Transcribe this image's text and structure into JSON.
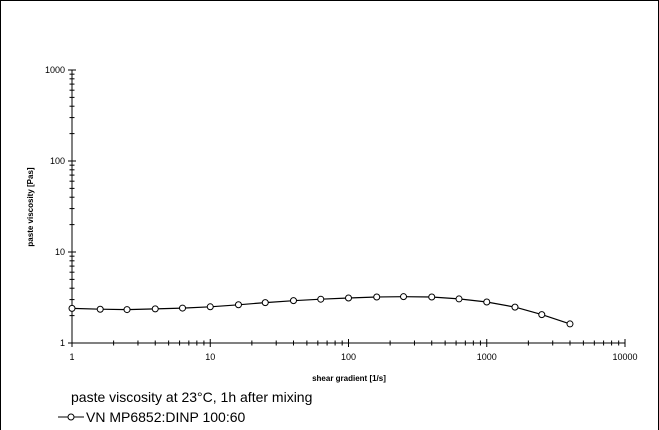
{
  "chart_data": {
    "type": "line",
    "title": "",
    "xlabel": "shear gradient  [1/s]",
    "ylabel": "paste viscosity   [Pas]",
    "x_scale": "log",
    "y_scale": "log",
    "xlim": [
      1,
      10000
    ],
    "ylim": [
      1,
      1000
    ],
    "x_ticks": [
      "1",
      "10",
      "100",
      "1000",
      "10000"
    ],
    "y_ticks": [
      "1",
      "10",
      "100",
      "1000"
    ],
    "grid": false,
    "annotation": "paste viscosity at 23°C, 1h after mixing",
    "legend_placement": "bottom-left",
    "series": [
      {
        "name": "VN  MP6852:DINP  100:60",
        "color": "#000000",
        "marker": "open-circle",
        "x": [
          1,
          1.6,
          2.5,
          4,
          6.3,
          10,
          16,
          25,
          40,
          63,
          100,
          160,
          250,
          400,
          630,
          1000,
          1600,
          2500,
          4000
        ],
        "y": [
          2.4,
          2.35,
          2.33,
          2.37,
          2.42,
          2.5,
          2.63,
          2.78,
          2.92,
          3.03,
          3.12,
          3.2,
          3.23,
          3.2,
          3.05,
          2.82,
          2.48,
          2.05,
          1.62
        ]
      }
    ]
  }
}
